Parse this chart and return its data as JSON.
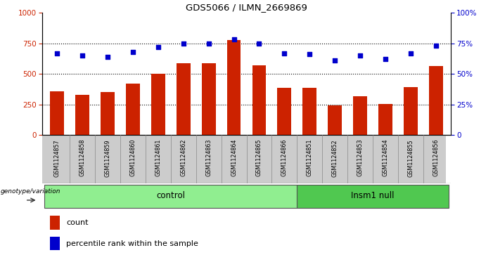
{
  "title": "GDS5066 / ILMN_2669869",
  "samples": [
    "GSM1124857",
    "GSM1124858",
    "GSM1124859",
    "GSM1124860",
    "GSM1124861",
    "GSM1124862",
    "GSM1124863",
    "GSM1124864",
    "GSM1124865",
    "GSM1124866",
    "GSM1124851",
    "GSM1124852",
    "GSM1124853",
    "GSM1124854",
    "GSM1124855",
    "GSM1124856"
  ],
  "counts": [
    360,
    330,
    350,
    420,
    500,
    590,
    585,
    775,
    570,
    385,
    385,
    245,
    320,
    255,
    390,
    565
  ],
  "percentiles": [
    67,
    65,
    64,
    68,
    72,
    75,
    75,
    78,
    75,
    67,
    66,
    61,
    65,
    62,
    67,
    73
  ],
  "bar_color": "#CC2200",
  "dot_color": "#0000CC",
  "ylim_left": [
    0,
    1000
  ],
  "ylim_right": [
    0,
    100
  ],
  "yticks_left": [
    0,
    250,
    500,
    750,
    1000
  ],
  "yticks_right": [
    0,
    25,
    50,
    75,
    100
  ],
  "bg_color": "#ffffff",
  "grid_color": "#000000",
  "xlabel_color": "#CC2200",
  "ylabel_right_color": "#0000CC",
  "label_area_color": "#CCCCCC",
  "genotype_label": "genotype/variation",
  "control_label": "control",
  "insm1_label": "Insm1 null",
  "control_count": 10,
  "insm1_count": 6
}
